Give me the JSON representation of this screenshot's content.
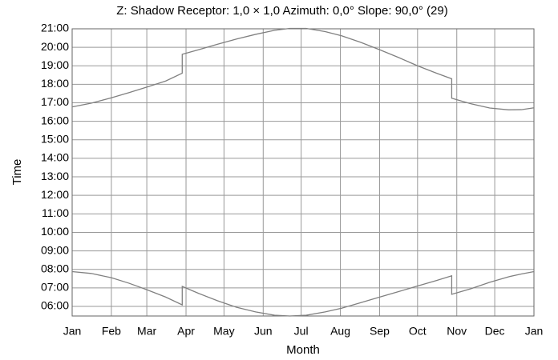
{
  "chart_data": {
    "type": "line",
    "title": "Z: Shadow Receptor: 1,0 × 1,0  Azimuth: 0,0°  Slope: 90,0° (29)",
    "xlabel": "Month",
    "ylabel": "Time",
    "xlim": [
      0,
      365
    ],
    "ylim": [
      5.48,
      21
    ],
    "xticks": [
      {
        "value": 0,
        "label": "Jan"
      },
      {
        "value": 31,
        "label": "Feb"
      },
      {
        "value": 59,
        "label": "Mar"
      },
      {
        "value": 90,
        "label": "Apr"
      },
      {
        "value": 120,
        "label": "May"
      },
      {
        "value": 151,
        "label": "Jun"
      },
      {
        "value": 181,
        "label": "Jul"
      },
      {
        "value": 212,
        "label": "Aug"
      },
      {
        "value": 243,
        "label": "Sep"
      },
      {
        "value": 273,
        "label": "Oct"
      },
      {
        "value": 304,
        "label": "Nov"
      },
      {
        "value": 334,
        "label": "Dec"
      },
      {
        "value": 365,
        "label": "Jan"
      }
    ],
    "yticks": [
      {
        "value": 6,
        "label": "06:00"
      },
      {
        "value": 7,
        "label": "07:00"
      },
      {
        "value": 8,
        "label": "08:00"
      },
      {
        "value": 9,
        "label": "09:00"
      },
      {
        "value": 10,
        "label": "10:00"
      },
      {
        "value": 11,
        "label": "11:00"
      },
      {
        "value": 12,
        "label": "12:00"
      },
      {
        "value": 13,
        "label": "13:00"
      },
      {
        "value": 14,
        "label": "14:00"
      },
      {
        "value": 15,
        "label": "15:00"
      },
      {
        "value": 16,
        "label": "16:00"
      },
      {
        "value": 17,
        "label": "17:00"
      },
      {
        "value": 18,
        "label": "18:00"
      },
      {
        "value": 19,
        "label": "19:00"
      },
      {
        "value": 20,
        "label": "20:00"
      },
      {
        "value": 21,
        "label": "21:00"
      }
    ],
    "grid": true,
    "x": [
      0,
      15,
      31,
      45,
      59,
      74,
      87,
      87,
      100,
      115,
      130,
      145,
      160,
      172,
      185,
      200,
      213,
      228,
      243,
      258,
      273,
      288,
      300,
      300,
      315,
      330,
      345,
      355,
      365
    ],
    "series": [
      {
        "color": "#808080",
        "values": [
          16.78,
          16.98,
          17.27,
          17.55,
          17.85,
          18.18,
          18.6,
          19.62,
          19.87,
          20.17,
          20.45,
          20.7,
          20.92,
          21.02,
          21.02,
          20.85,
          20.62,
          20.27,
          19.87,
          19.45,
          19.0,
          18.6,
          18.3,
          17.25,
          16.95,
          16.72,
          16.62,
          16.63,
          16.73
        ]
      },
      {
        "color": "#808080",
        "values": [
          7.88,
          7.78,
          7.55,
          7.25,
          6.9,
          6.5,
          6.08,
          7.08,
          6.7,
          6.3,
          5.95,
          5.7,
          5.52,
          5.48,
          5.52,
          5.7,
          5.9,
          6.2,
          6.5,
          6.8,
          7.1,
          7.4,
          7.65,
          6.65,
          6.95,
          7.3,
          7.6,
          7.75,
          7.88
        ]
      }
    ]
  }
}
